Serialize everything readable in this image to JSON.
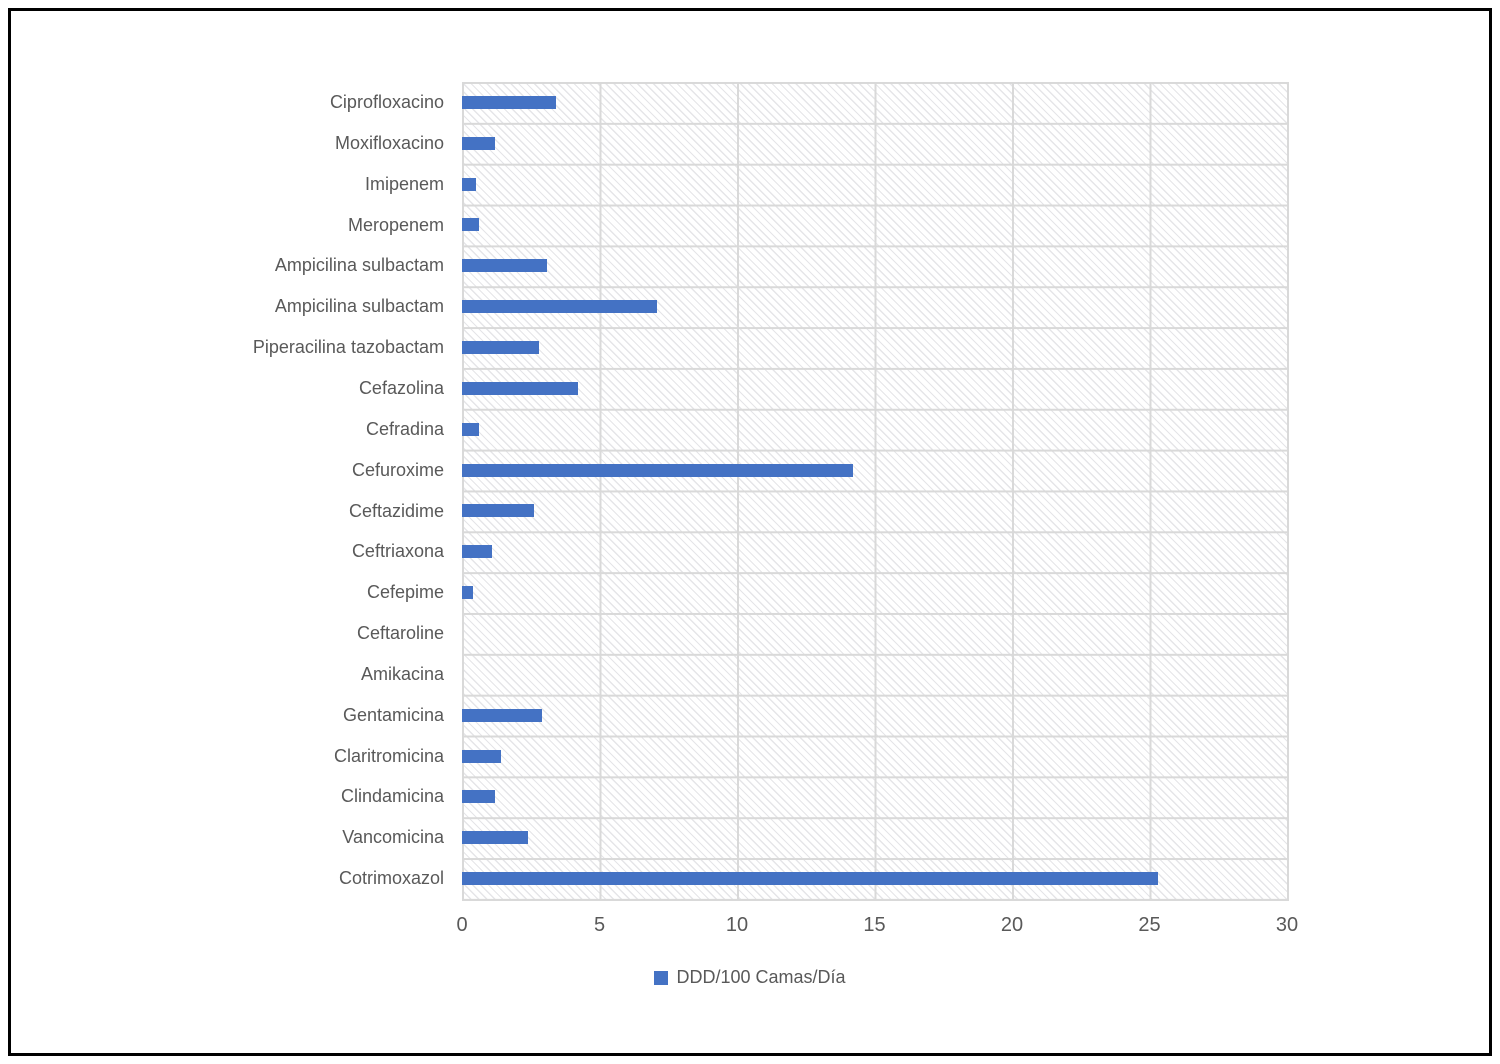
{
  "chart_data": {
    "type": "bar",
    "orientation": "horizontal",
    "title": "",
    "categories": [
      "Ciprofloxacino",
      "Moxifloxacino",
      "Imipenem",
      "Meropenem",
      "Ampicilina sulbactam",
      "Ampicilina sulbactam",
      "Piperacilina tazobactam",
      "Cefazolina",
      "Cefradina",
      "Cefuroxime",
      "Ceftazidime",
      "Ceftriaxona",
      "Cefepime",
      "Ceftaroline",
      "Amikacina",
      "Gentamicina",
      "Claritromicina",
      "Clindamicina",
      "Vancomicina",
      "Cotrimoxazol"
    ],
    "series": [
      {
        "name": "DDD/100 Camas/Día",
        "values": [
          3.4,
          1.2,
          0.5,
          0.6,
          3.1,
          7.1,
          2.8,
          4.2,
          0.6,
          14.2,
          2.6,
          1.1,
          0.4,
          0,
          0,
          2.9,
          1.4,
          1.2,
          2.4,
          25.3
        ]
      }
    ],
    "xlabel": "",
    "ylabel": "",
    "xlim": [
      0,
      30
    ],
    "xticks": [
      0,
      5,
      10,
      15,
      20,
      25,
      30
    ],
    "grid": true,
    "plot_background_pattern": "light-downward-diagonal-hatch",
    "legend_position": "bottom",
    "colors": {
      "bar": "#4472C4",
      "gridline": "#D9D9D9",
      "text": "#595959",
      "hatch": "#E5E5E8",
      "frame_border": "#000000"
    }
  },
  "legend": {
    "label": "DDD/100 Camas/Día"
  }
}
